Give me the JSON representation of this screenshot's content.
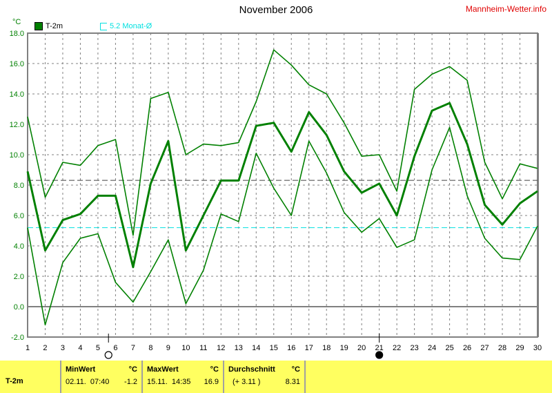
{
  "header": {
    "title": "November 2006",
    "site": "Mannheim-Wetter.info",
    "unit": "°C"
  },
  "legend": [
    {
      "label": "T-2m",
      "color": "#008000"
    },
    {
      "label": "5.2 Monat-Ø",
      "color": "#00e0e0"
    }
  ],
  "chart_data": {
    "type": "line",
    "title": "November 2006",
    "ylabel": "°C",
    "xlim": [
      1,
      30
    ],
    "ylim": [
      -2,
      18
    ],
    "grid": true,
    "x": [
      1,
      2,
      3,
      4,
      5,
      6,
      7,
      8,
      9,
      10,
      11,
      12,
      13,
      14,
      15,
      16,
      17,
      18,
      19,
      20,
      21,
      22,
      23,
      24,
      25,
      26,
      27,
      28,
      29,
      30
    ],
    "yticks": [
      "18.0",
      "16.0",
      "14.0",
      "12.0",
      "10.0",
      "8.0",
      "6.0",
      "4.0",
      "2.0",
      "0.0",
      "-2.0"
    ],
    "series": [
      {
        "role": "max",
        "values": [
          12.5,
          7.2,
          9.5,
          9.3,
          10.6,
          11.0,
          4.7,
          13.7,
          14.1,
          10.0,
          10.7,
          10.6,
          10.8,
          13.5,
          16.9,
          15.9,
          14.6,
          14.0,
          12.1,
          9.9,
          10.0,
          7.6,
          14.3,
          15.3,
          15.8,
          14.9,
          9.5,
          7.1,
          9.4,
          9.1
        ]
      },
      {
        "name": "T-2m",
        "role": "mean",
        "values": [
          8.9,
          3.7,
          5.7,
          6.1,
          7.3,
          7.3,
          2.6,
          8.1,
          10.9,
          3.7,
          6.0,
          8.3,
          8.3,
          11.9,
          12.1,
          10.2,
          12.8,
          11.3,
          8.9,
          7.5,
          8.1,
          6.0,
          9.9,
          12.9,
          13.4,
          10.7,
          6.7,
          5.4,
          6.8,
          7.6
        ]
      },
      {
        "role": "min",
        "values": [
          5.2,
          -1.2,
          2.9,
          4.5,
          4.8,
          1.6,
          0.3,
          2.3,
          4.4,
          0.2,
          2.4,
          6.1,
          5.6,
          10.1,
          7.8,
          6.0,
          10.9,
          8.8,
          6.2,
          4.9,
          5.8,
          3.9,
          4.4,
          9.0,
          11.8,
          7.3,
          4.5,
          3.2,
          3.1,
          5.3
        ]
      }
    ],
    "reference_lines": [
      {
        "value": 8.31,
        "color": "#404040",
        "style": "dashed"
      },
      {
        "name": "5.2 Monat-Ø",
        "value": 5.2,
        "color": "#00e0e0",
        "style": "dashed"
      }
    ],
    "moon_phases": [
      {
        "day": 5.6,
        "phase": "full"
      },
      {
        "day": 21,
        "phase": "new"
      }
    ]
  },
  "panel": {
    "row_label": "T-2m",
    "min": {
      "header": "MinWert",
      "unit": "°C",
      "date": "02.11.  07:40",
      "value": "-1.2"
    },
    "max": {
      "header": "MaxWert",
      "unit": "°C",
      "date": "15.11.  14:35",
      "value": "16.9"
    },
    "avg": {
      "header": "Durchschnitt",
      "unit": "°C",
      "diff": "(+ 3.11 )",
      "value": "8.31"
    }
  }
}
